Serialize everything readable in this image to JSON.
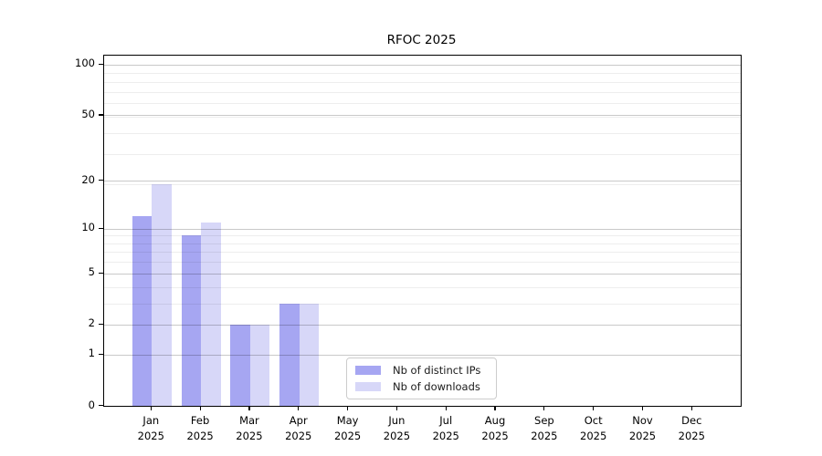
{
  "title": "RFOC 2025",
  "chart_data": {
    "type": "bar",
    "categories": [
      "Jan 2025",
      "Feb 2025",
      "Mar 2025",
      "Apr 2025",
      "May 2025",
      "Jun 2025",
      "Jul 2025",
      "Aug 2025",
      "Sep 2025",
      "Oct 2025",
      "Nov 2025",
      "Dec 2025"
    ],
    "month_labels": [
      "Jan",
      "Feb",
      "Mar",
      "Apr",
      "May",
      "Jun",
      "Jul",
      "Aug",
      "Sep",
      "Oct",
      "Nov",
      "Dec"
    ],
    "year_label": "2025",
    "series": [
      {
        "name": "Nb of distinct IPs",
        "color": "#a6a6f2",
        "values": [
          12,
          9,
          2,
          3,
          0,
          0,
          0,
          0,
          0,
          0,
          0,
          0
        ]
      },
      {
        "name": "Nb of downloads",
        "color": "#d7d7f8",
        "values": [
          19,
          11,
          2,
          3,
          0,
          0,
          0,
          0,
          0,
          0,
          0,
          0
        ]
      }
    ],
    "title": "RFOC 2025",
    "xlabel": "",
    "ylabel": "",
    "y_scale": "log1p",
    "ylim": [
      0,
      100
    ],
    "y_ticks": [
      0,
      1,
      2,
      5,
      10,
      20,
      50,
      100
    ],
    "y_minor_gridlines": [
      3,
      4,
      6,
      7,
      8,
      9,
      19,
      29,
      39,
      49,
      59,
      69,
      79,
      89
    ],
    "grid": true,
    "legend_position": "lower-center-inside"
  },
  "colors": {
    "axis": "#000000",
    "major_grid": "#cccccc",
    "minor_grid": "#ededed",
    "background": "#ffffff"
  }
}
